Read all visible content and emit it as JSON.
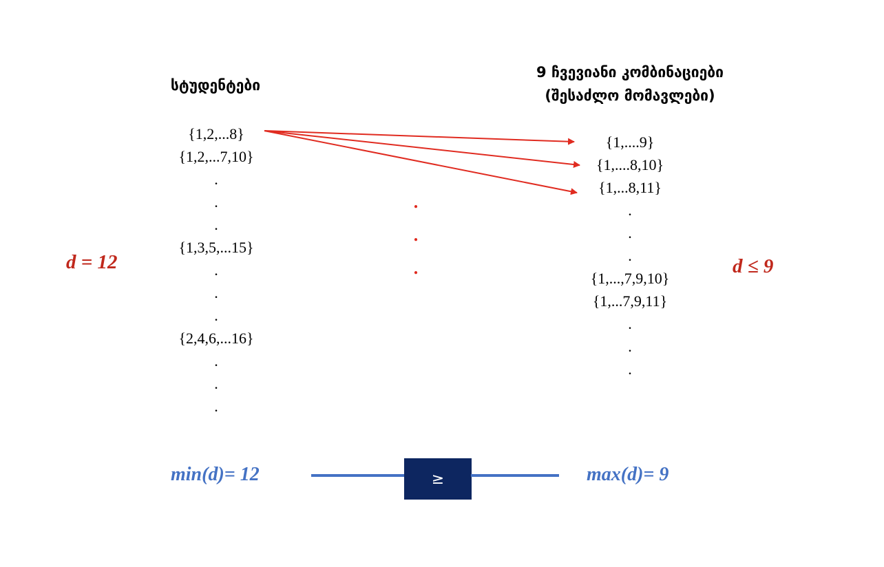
{
  "headings": {
    "students": "სტუდენტები",
    "combos_line1": "9 ჩვევიანი კომბინაციები",
    "combos_line2": "(შესაძლო მომავლები)"
  },
  "students_column": [
    "{1,2,...8}",
    "{1,2,...7,10}",
    ".",
    ".",
    ".",
    "{1,3,5,...15}",
    ".",
    ".",
    ".",
    "{2,4,6,...16}",
    ".",
    ".",
    "."
  ],
  "combos_column": [
    "{1,....9}",
    "{1,....8,10}",
    "{1,...8,11}",
    ".",
    ".",
    ".",
    "{1,...,7,9,10}",
    "{1,...7,9,11}",
    ".",
    ".",
    "."
  ],
  "middle_dots": [
    ".",
    ".",
    "."
  ],
  "left_ineq": "d = 12",
  "right_ineq": "d ≤ 9",
  "min_label": "min(d)= 12",
  "max_label": "max(d)= 9",
  "comparison_symbol": "≥",
  "colors": {
    "arrow": "#e02b20",
    "ineq_text": "#c0281c",
    "extreme_text": "#4472c4",
    "rule_line": "#4472c4",
    "comparison_box": "#0d2660"
  }
}
